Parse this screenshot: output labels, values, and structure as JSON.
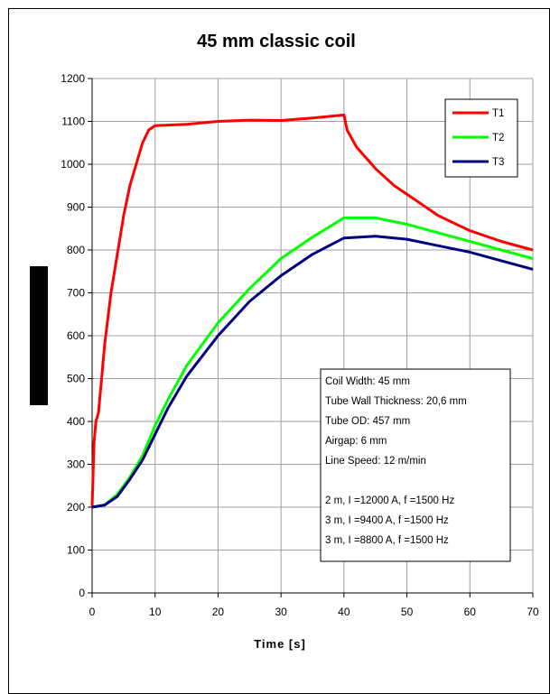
{
  "chart_data": {
    "type": "line",
    "title": "45 mm classic coil",
    "xlabel": "Time [s]",
    "ylabel": "",
    "xlim": [
      0,
      70
    ],
    "ylim": [
      0,
      1200
    ],
    "xticks": [
      0,
      10,
      20,
      30,
      40,
      50,
      60,
      70
    ],
    "yticks": [
      0,
      100,
      200,
      300,
      400,
      500,
      600,
      700,
      800,
      900,
      1000,
      1100,
      1200
    ],
    "grid": true,
    "legend_position": "top-right",
    "series": [
      {
        "name": "T1",
        "color": "#ff0000",
        "x": [
          0,
          0.3,
          0.6,
          1,
          1.5,
          2,
          3,
          4,
          5,
          6,
          7,
          8,
          9,
          10,
          15,
          20,
          25,
          30,
          35,
          38,
          40,
          40.5,
          42,
          45,
          48,
          50,
          55,
          60,
          65,
          70
        ],
        "y": [
          200,
          350,
          400,
          420,
          500,
          580,
          700,
          790,
          880,
          950,
          1000,
          1050,
          1080,
          1090,
          1093,
          1100,
          1103,
          1102,
          1108,
          1112,
          1115,
          1080,
          1040,
          990,
          950,
          930,
          880,
          845,
          820,
          800
        ]
      },
      {
        "name": "T2",
        "color": "#00ff00",
        "x": [
          0,
          2,
          4,
          6,
          8,
          10,
          12,
          15,
          20,
          25,
          30,
          35,
          40,
          45,
          50,
          55,
          60,
          65,
          70
        ],
        "y": [
          200,
          205,
          230,
          270,
          320,
          390,
          450,
          530,
          630,
          710,
          780,
          830,
          875,
          875,
          860,
          840,
          820,
          800,
          780
        ]
      },
      {
        "name": "T3",
        "color": "#000080",
        "x": [
          0,
          2,
          4,
          6,
          8,
          10,
          12,
          15,
          20,
          25,
          30,
          35,
          40,
          45,
          50,
          55,
          60,
          65,
          70
        ],
        "y": [
          200,
          205,
          225,
          265,
          310,
          370,
          430,
          505,
          600,
          680,
          740,
          790,
          828,
          832,
          825,
          810,
          795,
          775,
          755
        ]
      }
    ],
    "annotation_lines": [
      "Coil Width: 45 mm",
      "Tube Wall Thickness: 20,6 mm",
      "Tube OD: 457 mm",
      "Airgap: 6 mm",
      "Line Speed: 12 m/min",
      "",
      "2 m, I =12000 A, f =1500 Hz",
      "3 m, I =9400 A, f =1500 Hz",
      "3 m, I =8800 A, f =1500 Hz"
    ]
  }
}
